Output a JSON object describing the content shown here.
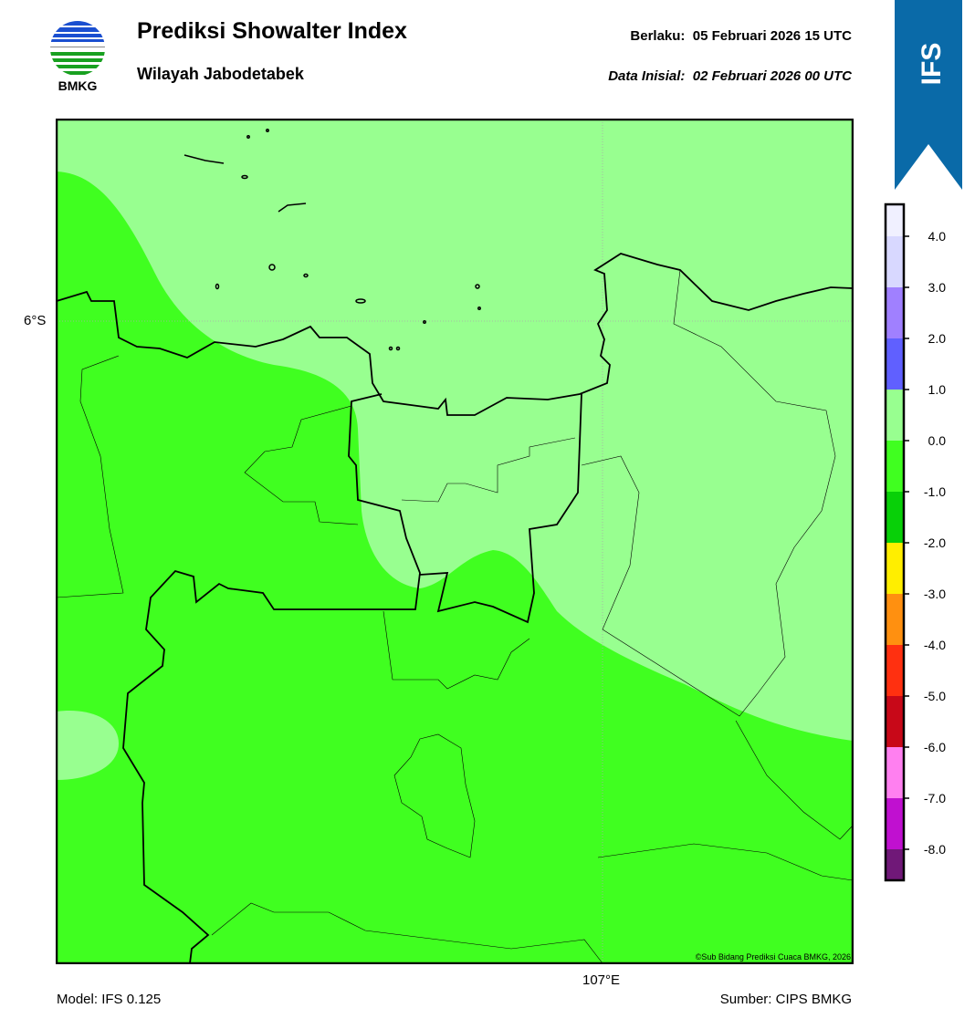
{
  "header": {
    "logo_text": "BMKG",
    "title": "Prediksi Showalter Index",
    "subtitle": "Wilayah Jabodetabek",
    "valid_label": "Berlaku:  05 Februari 2026 15 UTC",
    "init_label": "Data Inisial:  02 Februari 2026 00 UTC",
    "model_badge": "IFS",
    "badge_color": "#0a6aa8"
  },
  "map": {
    "lat_label": "6°S",
    "lon_label": "107°E",
    "credit": "©Sub Bidang Prediksi Cuaca BMKG, 2026",
    "fill_colors": {
      "range_0_to_1": "#98ff90",
      "range_-1_to_0": "#40ff20"
    }
  },
  "colorbar": {
    "ticks": [
      "4.0",
      "3.0",
      "2.0",
      "1.0",
      "0.0",
      "-1.0",
      "-2.0",
      "-3.0",
      "-4.0",
      "-5.0",
      "-6.0",
      "-7.0",
      "-8.0"
    ],
    "colors": [
      "#f0f0ff",
      "#d8d8ff",
      "#a080ff",
      "#6060ff",
      "#98ff90",
      "#40ff20",
      "#08d008",
      "#ffee00",
      "#ff9010",
      "#ff3010",
      "#c80818",
      "#ff80f0",
      "#c010d0",
      "#701878"
    ]
  },
  "footer": {
    "model": "Model: IFS 0.125",
    "source": "Sumber: CIPS BMKG"
  }
}
